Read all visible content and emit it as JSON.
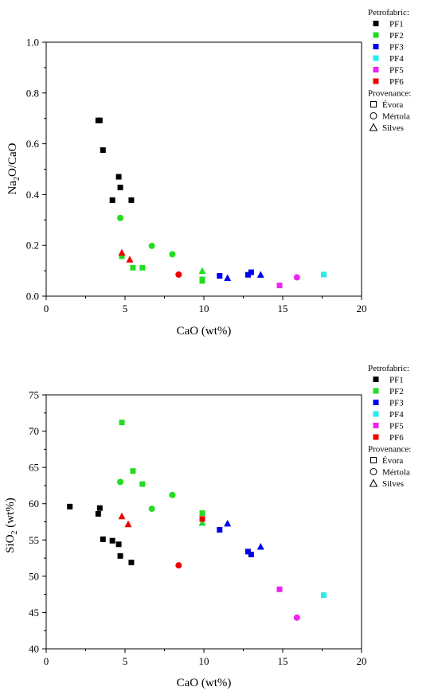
{
  "marker_colors": {
    "PF1": "#000000",
    "PF2": "#22dd22",
    "PF3": "#0000ee",
    "PF4": "#22eeee",
    "PF5": "#ee22ee",
    "PF6": "#ee0000"
  },
  "legend": {
    "petrofabric_title": "Petrofabric:",
    "petrofabric_items": [
      "PF1",
      "PF2",
      "PF3",
      "PF4",
      "PF5",
      "PF6"
    ],
    "provenance_title": "Provenance:",
    "provenance_items": [
      {
        "label": "Évora",
        "shape": "square"
      },
      {
        "label": "Mértola",
        "shape": "circle"
      },
      {
        "label": "Silves",
        "shape": "triangle"
      }
    ]
  },
  "chart_data": [
    {
      "type": "scatter",
      "xlabel": "CaO (wt%)",
      "ylabel": "Na2O/CaO",
      "xlim": [
        0,
        20
      ],
      "ylim": [
        0,
        1.0
      ],
      "xticks": [
        0,
        5,
        10,
        15,
        20
      ],
      "yticks": [
        0.0,
        0.2,
        0.4,
        0.6,
        0.8,
        1.0
      ],
      "grid": false,
      "legend_position": "top-right",
      "points": [
        {
          "pf": "PF1",
          "shape": "square",
          "x": 3.3,
          "y": 0.692
        },
        {
          "pf": "PF1",
          "shape": "square",
          "x": 3.4,
          "y": 0.692
        },
        {
          "pf": "PF1",
          "shape": "square",
          "x": 3.6,
          "y": 0.575
        },
        {
          "pf": "PF1",
          "shape": "square",
          "x": 4.6,
          "y": 0.47
        },
        {
          "pf": "PF1",
          "shape": "square",
          "x": 4.7,
          "y": 0.428
        },
        {
          "pf": "PF1",
          "shape": "square",
          "x": 4.2,
          "y": 0.378
        },
        {
          "pf": "PF1",
          "shape": "square",
          "x": 5.4,
          "y": 0.378
        },
        {
          "pf": "PF2",
          "shape": "circle",
          "x": 4.7,
          "y": 0.308
        },
        {
          "pf": "PF2",
          "shape": "circle",
          "x": 6.7,
          "y": 0.198
        },
        {
          "pf": "PF2",
          "shape": "circle",
          "x": 8.0,
          "y": 0.165
        },
        {
          "pf": "PF2",
          "shape": "square",
          "x": 4.8,
          "y": 0.157
        },
        {
          "pf": "PF2",
          "shape": "square",
          "x": 5.5,
          "y": 0.112
        },
        {
          "pf": "PF2",
          "shape": "square",
          "x": 6.1,
          "y": 0.112
        },
        {
          "pf": "PF2",
          "shape": "triangle",
          "x": 9.9,
          "y": 0.1
        },
        {
          "pf": "PF2",
          "shape": "square",
          "x": 9.9,
          "y": 0.066
        },
        {
          "pf": "PF2",
          "shape": "square",
          "x": 9.9,
          "y": 0.06
        },
        {
          "pf": "PF3",
          "shape": "square",
          "x": 11.0,
          "y": 0.08
        },
        {
          "pf": "PF3",
          "shape": "triangle",
          "x": 11.5,
          "y": 0.072
        },
        {
          "pf": "PF3",
          "shape": "square",
          "x": 12.8,
          "y": 0.084
        },
        {
          "pf": "PF3",
          "shape": "square",
          "x": 13.0,
          "y": 0.094
        },
        {
          "pf": "PF3",
          "shape": "triangle",
          "x": 13.6,
          "y": 0.085
        },
        {
          "pf": "PF4",
          "shape": "square",
          "x": 17.6,
          "y": 0.085
        },
        {
          "pf": "PF5",
          "shape": "square",
          "x": 14.8,
          "y": 0.042
        },
        {
          "pf": "PF5",
          "shape": "circle",
          "x": 15.9,
          "y": 0.074
        },
        {
          "pf": "PF6",
          "shape": "triangle",
          "x": 4.8,
          "y": 0.172
        },
        {
          "pf": "PF6",
          "shape": "triangle",
          "x": 5.3,
          "y": 0.145
        },
        {
          "pf": "PF6",
          "shape": "circle",
          "x": 8.4,
          "y": 0.085
        }
      ]
    },
    {
      "type": "scatter",
      "xlabel": "CaO (wt%)",
      "ylabel": "SiO2 (wt%)",
      "xlim": [
        0,
        20
      ],
      "ylim": [
        40,
        75
      ],
      "xticks": [
        0,
        5,
        10,
        15,
        20
      ],
      "yticks": [
        40,
        45,
        50,
        55,
        60,
        65,
        70,
        75
      ],
      "grid": false,
      "legend_position": "top-right",
      "points": [
        {
          "pf": "PF1",
          "shape": "square",
          "x": 1.5,
          "y": 59.6
        },
        {
          "pf": "PF1",
          "shape": "square",
          "x": 3.4,
          "y": 59.4
        },
        {
          "pf": "PF1",
          "shape": "square",
          "x": 3.3,
          "y": 58.6
        },
        {
          "pf": "PF1",
          "shape": "square",
          "x": 3.6,
          "y": 55.1
        },
        {
          "pf": "PF1",
          "shape": "square",
          "x": 4.2,
          "y": 54.9
        },
        {
          "pf": "PF1",
          "shape": "square",
          "x": 4.6,
          "y": 54.4
        },
        {
          "pf": "PF1",
          "shape": "square",
          "x": 4.7,
          "y": 52.8
        },
        {
          "pf": "PF1",
          "shape": "square",
          "x": 5.4,
          "y": 51.9
        },
        {
          "pf": "PF2",
          "shape": "square",
          "x": 4.8,
          "y": 71.2
        },
        {
          "pf": "PF2",
          "shape": "square",
          "x": 5.5,
          "y": 64.5
        },
        {
          "pf": "PF2",
          "shape": "circle",
          "x": 4.7,
          "y": 63.0
        },
        {
          "pf": "PF2",
          "shape": "square",
          "x": 6.1,
          "y": 62.7
        },
        {
          "pf": "PF2",
          "shape": "circle",
          "x": 8.0,
          "y": 61.2
        },
        {
          "pf": "PF2",
          "shape": "circle",
          "x": 6.7,
          "y": 59.3
        },
        {
          "pf": "PF2",
          "shape": "square",
          "x": 9.9,
          "y": 58.7
        },
        {
          "pf": "PF2",
          "shape": "triangle",
          "x": 9.9,
          "y": 57.4
        },
        {
          "pf": "PF3",
          "shape": "triangle",
          "x": 11.5,
          "y": 57.3
        },
        {
          "pf": "PF3",
          "shape": "square",
          "x": 11.0,
          "y": 56.4
        },
        {
          "pf": "PF3",
          "shape": "triangle",
          "x": 13.6,
          "y": 54.1
        },
        {
          "pf": "PF3",
          "shape": "square",
          "x": 12.8,
          "y": 53.4
        },
        {
          "pf": "PF3",
          "shape": "square",
          "x": 13.0,
          "y": 53.0
        },
        {
          "pf": "PF4",
          "shape": "square",
          "x": 17.6,
          "y": 47.4
        },
        {
          "pf": "PF5",
          "shape": "square",
          "x": 14.8,
          "y": 48.2
        },
        {
          "pf": "PF5",
          "shape": "circle",
          "x": 15.9,
          "y": 44.3
        },
        {
          "pf": "PF6",
          "shape": "triangle",
          "x": 4.8,
          "y": 58.3
        },
        {
          "pf": "PF6",
          "shape": "triangle",
          "x": 5.2,
          "y": 57.2
        },
        {
          "pf": "PF6",
          "shape": "square",
          "x": 9.9,
          "y": 57.9
        },
        {
          "pf": "PF6",
          "shape": "circle",
          "x": 8.4,
          "y": 51.5
        }
      ]
    }
  ]
}
